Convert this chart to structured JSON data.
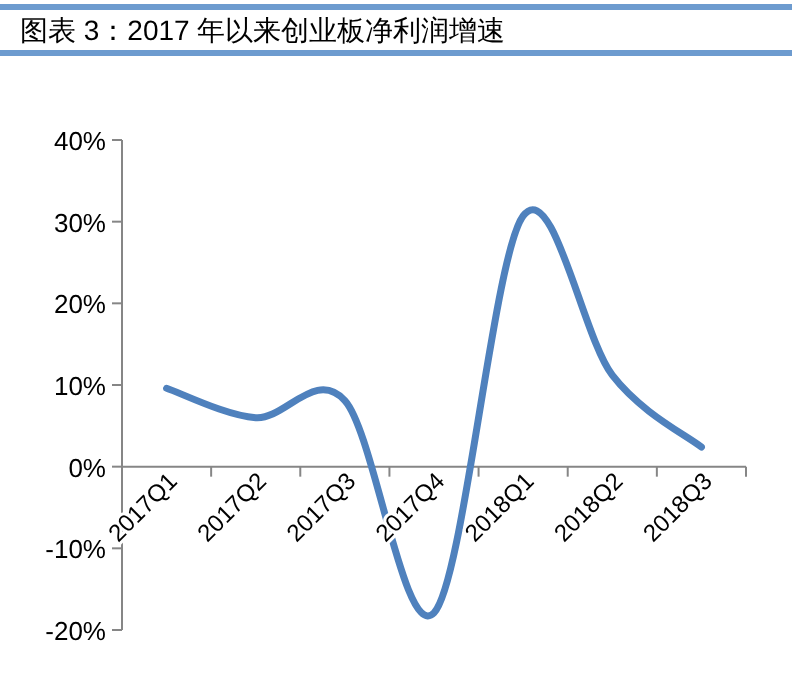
{
  "chart_data": {
    "type": "line",
    "title": "图表 3：2017 年以来创业板净利润增速",
    "categories": [
      "2017Q1",
      "2017Q2",
      "2017Q3",
      "2017Q4",
      "2018Q1",
      "2018Q2",
      "2018Q3"
    ],
    "series": [
      {
        "color": "#4f81bd",
        "values": [
          9.6,
          6.0,
          8.1,
          -17.9,
          30.7,
          11.2,
          2.4
        ]
      }
    ],
    "ylim": [
      -20,
      40
    ],
    "yticks": [
      {
        "value": -20,
        "label": "-20%"
      },
      {
        "value": -10,
        "label": "-10%"
      },
      {
        "value": 0,
        "label": "0%"
      },
      {
        "value": 10,
        "label": "10%"
      },
      {
        "value": 20,
        "label": "20%"
      },
      {
        "value": 30,
        "label": "30%"
      },
      {
        "value": 40,
        "label": "40%"
      }
    ],
    "grid": false,
    "marker": "none",
    "line_style": "solid"
  }
}
